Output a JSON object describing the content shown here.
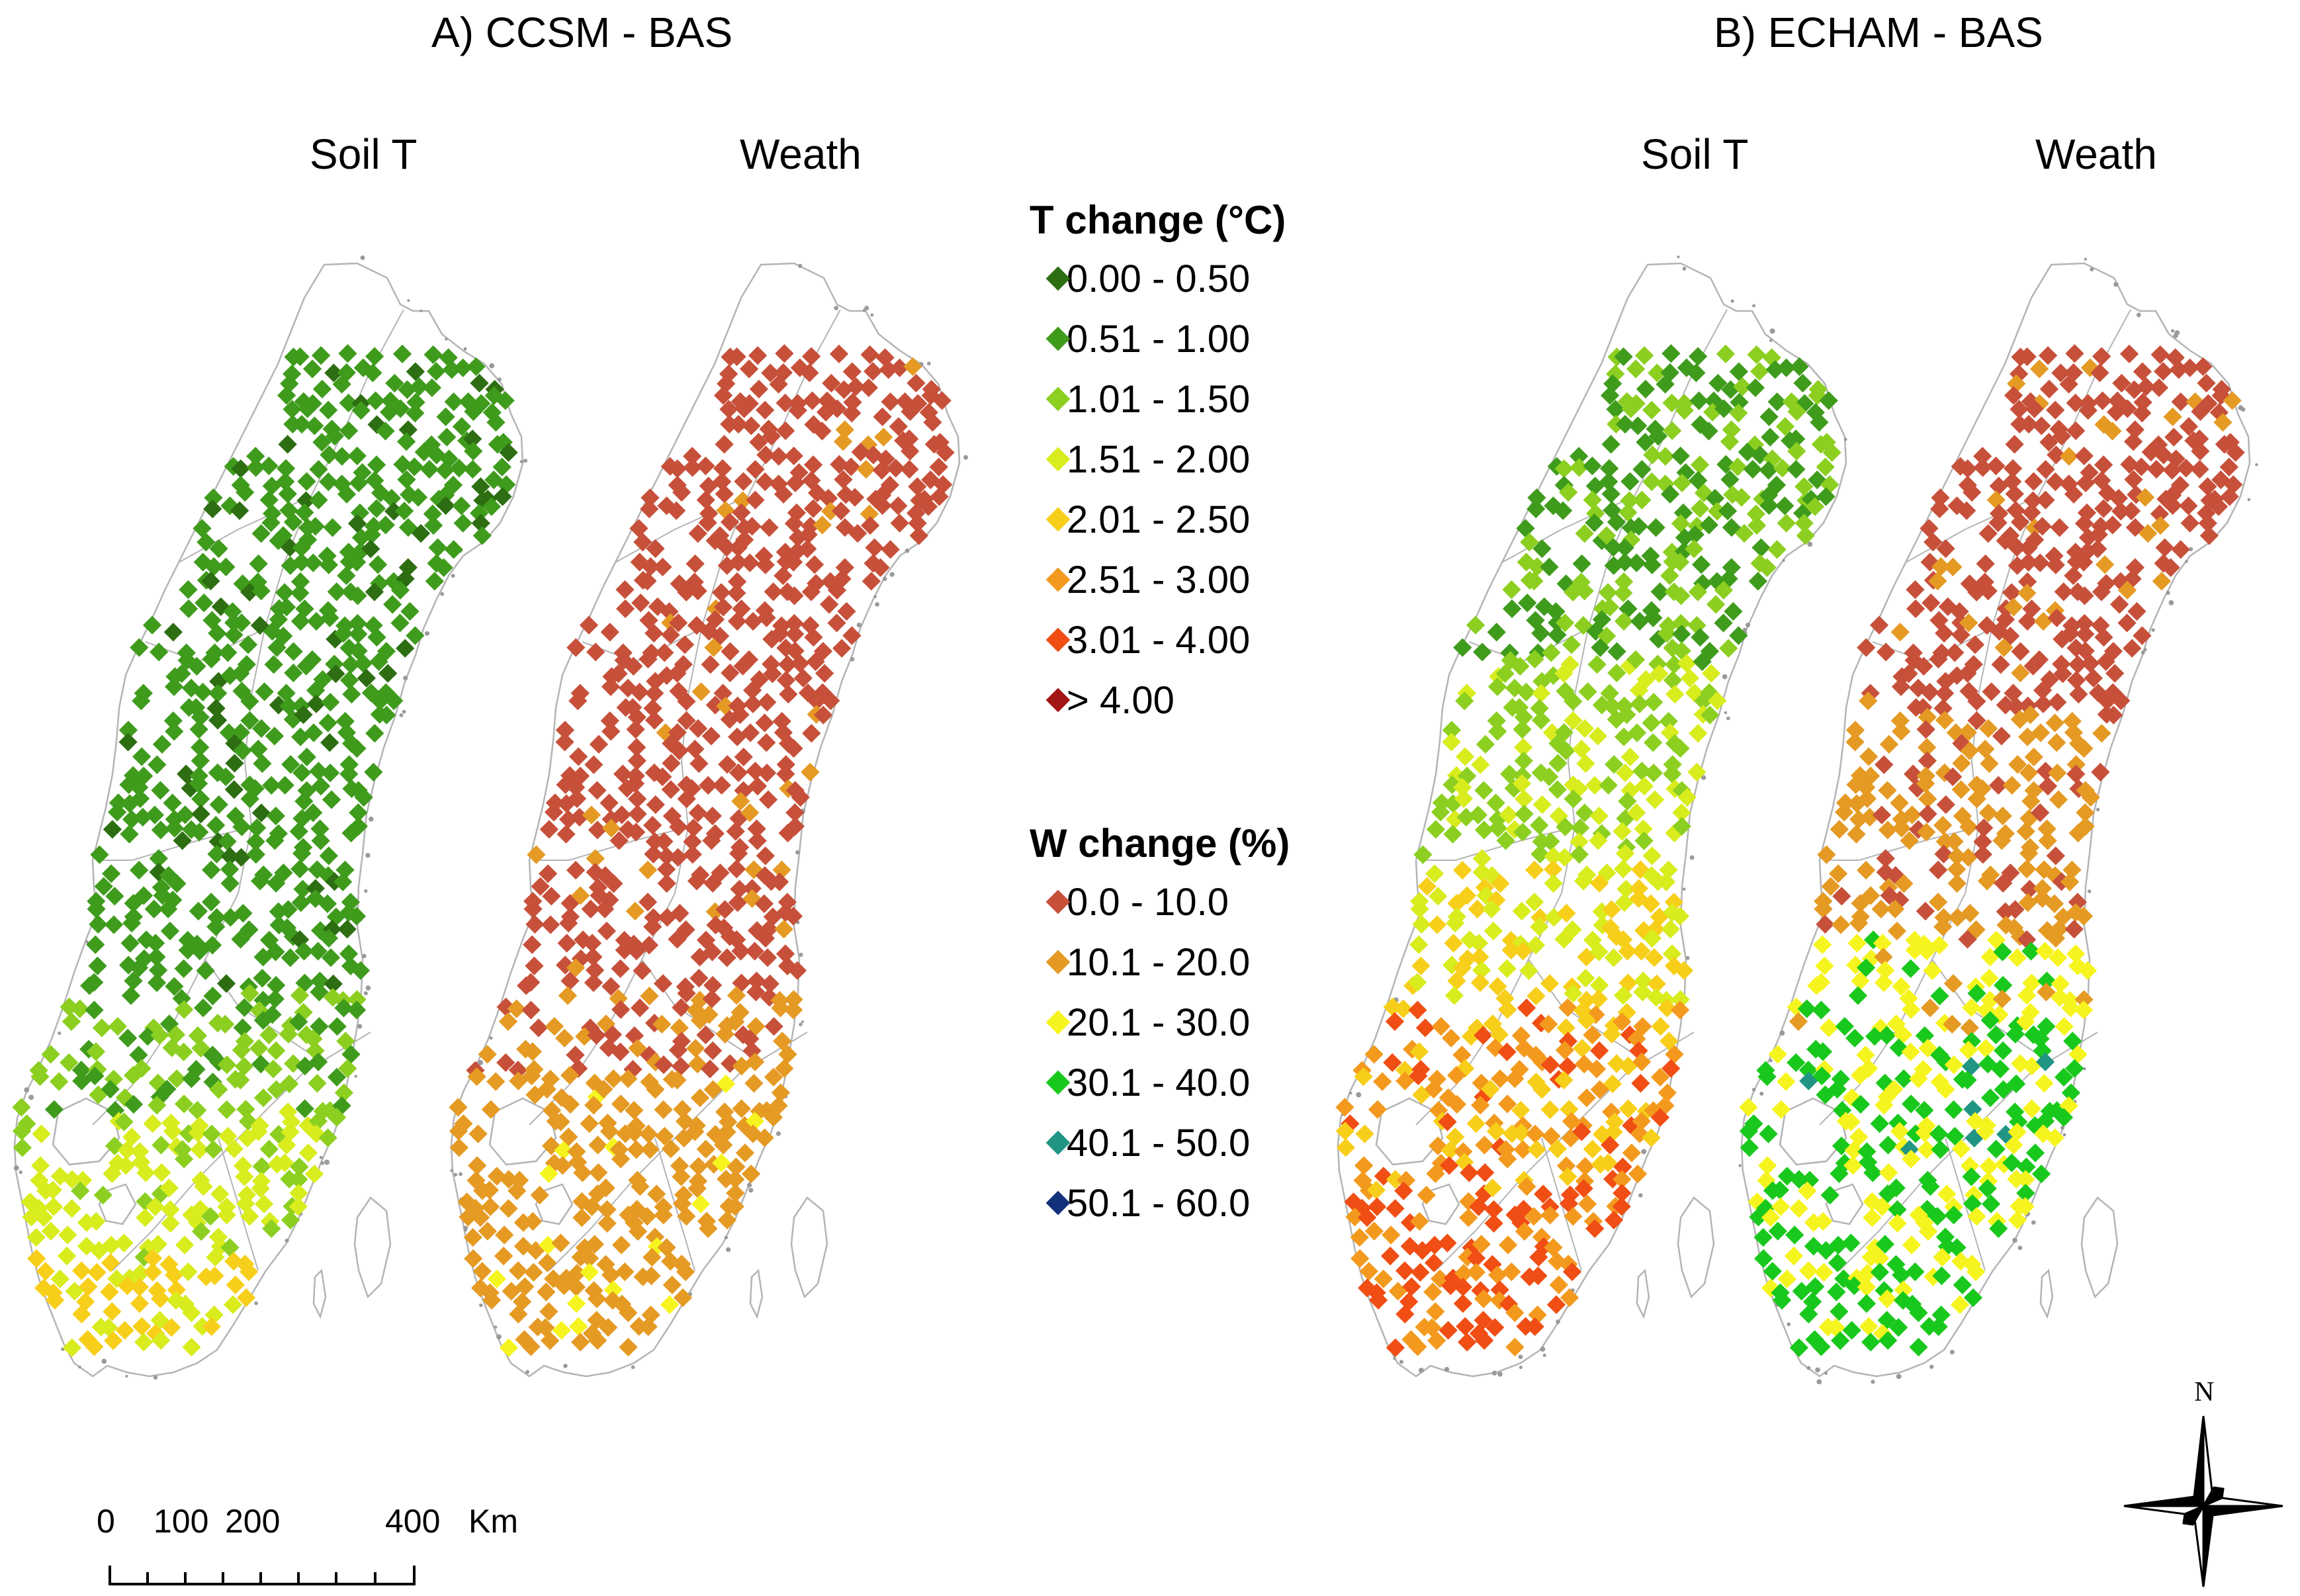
{
  "panels": {
    "a": {
      "title": "A) CCSM - BAS",
      "soil_label": "Soil T",
      "weath_label": "Weath"
    },
    "b": {
      "title": "B) ECHAM - BAS",
      "soil_label": "Soil T",
      "weath_label": "Weath"
    }
  },
  "legend": {
    "t_title": "T change (°C)",
    "t_classes": [
      {
        "label": "0.00 - 0.50",
        "color": "#2d6e12"
      },
      {
        "label": "0.51 - 1.00",
        "color": "#3f9b1c"
      },
      {
        "label": "1.01 - 1.50",
        "color": "#8ccf20"
      },
      {
        "label": "1.51 - 2.00",
        "color": "#d8ec1e"
      },
      {
        "label": "2.01 - 2.50",
        "color": "#f7cf1a"
      },
      {
        "label": "2.51 - 3.00",
        "color": "#f39a1e"
      },
      {
        "label": "3.01 - 4.00",
        "color": "#f04e14"
      },
      {
        "label": "> 4.00",
        "color": "#a31616"
      }
    ],
    "w_title": "W change (%)",
    "w_classes": [
      {
        "label": "0.0 - 10.0",
        "color": "#c7503a"
      },
      {
        "label": "10.1 - 20.0",
        "color": "#e59a23"
      },
      {
        "label": "20.1 - 30.0",
        "color": "#f6f41e"
      },
      {
        "label": "30.1 - 40.0",
        "color": "#19c81c"
      },
      {
        "label": "40.1 - 50.0",
        "color": "#209584"
      },
      {
        "label": "50.1 - 60.0",
        "color": "#13307a"
      }
    ]
  },
  "scale_bar": {
    "labels": [
      "0",
      "100",
      "200",
      "400"
    ],
    "unit": "Km"
  },
  "north_label": "N",
  "colors": {
    "border": "#b4b4b4",
    "coast": "#9a9a9a"
  }
}
